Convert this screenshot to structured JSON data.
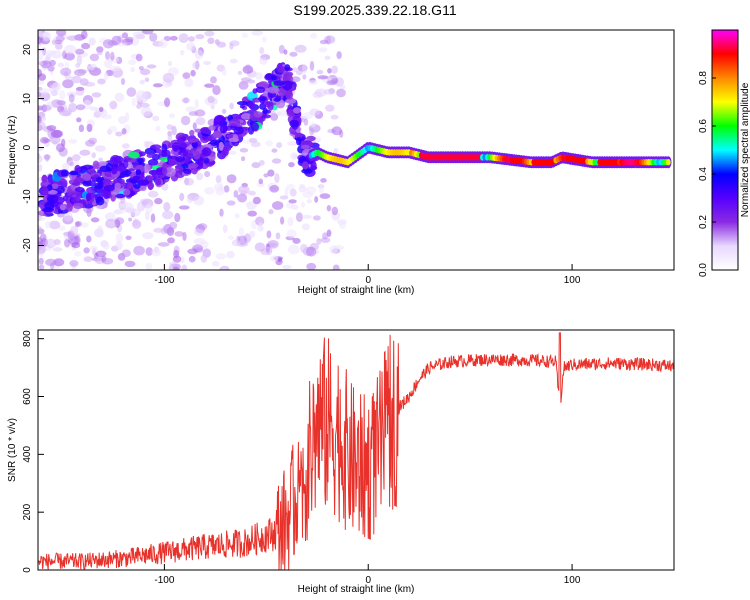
{
  "title": "S199.2025.339.22.18.G11",
  "chart_data": [
    {
      "type": "heatmap",
      "xlabel": "Height of straight line (km)",
      "ylabel": "Frequency (Hz)",
      "xlim": [
        -162,
        150
      ],
      "ylim": [
        -25,
        24
      ],
      "xticks": [
        -100,
        0,
        100
      ],
      "xtick_labels": [
        "-100",
        "0",
        "100"
      ],
      "yticks": [
        -20,
        -10,
        0,
        10,
        20
      ],
      "ytick_labels": [
        "-20",
        "-10",
        "0",
        "10",
        "20"
      ],
      "ridge": {
        "x": [
          -160,
          -140,
          -120,
          -100,
          -80,
          -60,
          -50,
          -40,
          -35,
          -30,
          -25,
          -20,
          -10,
          0,
          10,
          20,
          30,
          40,
          60,
          80,
          90,
          95,
          110,
          130,
          148
        ],
        "y": [
          -10,
          -8,
          -6,
          -3,
          0,
          6,
          10,
          14,
          5,
          -2,
          -1,
          -2,
          -3,
          0,
          -1,
          -1,
          -2,
          -2,
          -2,
          -3,
          -3,
          -2,
          -3,
          -3,
          -3
        ]
      },
      "colorbar": {
        "label": "Normalized spectral amplitude",
        "range": [
          0,
          1
        ],
        "ticks": [
          0.0,
          0.2,
          0.4,
          0.6,
          0.8
        ],
        "tick_labels": [
          "0.0",
          "0.2",
          "0.4",
          "0.6",
          "0.8"
        ],
        "colors": [
          "#ffffff",
          "#e8d8ff",
          "#8a2be2",
          "#5500ff",
          "#0000ff",
          "#00ffff",
          "#00ff00",
          "#ffff00",
          "#ff8800",
          "#ff0000",
          "#ff00ff"
        ]
      }
    },
    {
      "type": "line",
      "xlabel": "Height of straight line (km)",
      "ylabel": "SNR (10 * v/v)",
      "xlim": [
        -162,
        150
      ],
      "ylim": [
        0,
        830
      ],
      "xticks": [
        -100,
        0,
        100
      ],
      "xtick_labels": [
        "-100",
        "0",
        "100"
      ],
      "yticks": [
        0,
        200,
        400,
        600,
        800
      ],
      "ytick_labels": [
        "0",
        "200",
        "400",
        "600",
        "800"
      ],
      "color": "#e8312a",
      "series": [
        {
          "name": "SNR",
          "x": [
            -162,
            -140,
            -120,
            -100,
            -80,
            -60,
            -50,
            -45,
            -40,
            -35,
            -30,
            -25,
            -20,
            -15,
            -10,
            -5,
            0,
            5,
            10,
            15,
            20,
            25,
            30,
            40,
            50,
            60,
            80,
            92,
            94,
            96,
            100,
            120,
            140,
            150
          ],
          "y": [
            30,
            30,
            40,
            60,
            80,
            95,
            120,
            130,
            170,
            250,
            350,
            500,
            500,
            480,
            400,
            350,
            350,
            400,
            500,
            560,
            600,
            660,
            700,
            720,
            725,
            728,
            725,
            720,
            560,
            700,
            710,
            715,
            710,
            705
          ]
        }
      ]
    }
  ]
}
